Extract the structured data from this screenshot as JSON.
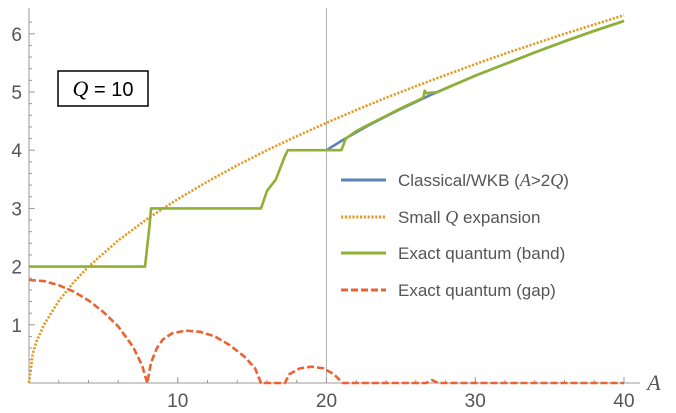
{
  "chart_data": {
    "type": "line",
    "xlabel": "A",
    "ylabel": "",
    "xlim": [
      0,
      40
    ],
    "ylim": [
      0,
      6.4
    ],
    "x_ticks": [
      10,
      20,
      30,
      40
    ],
    "y_ticks": [
      1,
      2,
      3,
      4,
      5,
      6
    ],
    "vertical_reference_line": 20,
    "grid": false,
    "legend_position": "right",
    "annotation": {
      "italic": "Q",
      "rest": " = 10"
    },
    "series": [
      {
        "name": "Classical/WKB (A>2Q)",
        "legend_parts": [
          [
            "Classical/WKB (",
            false
          ],
          [
            "A",
            true
          ],
          [
            ">2",
            false
          ],
          [
            "Q",
            true
          ],
          [
            ")",
            false
          ]
        ],
        "color": "#5e81b5",
        "style": "solid",
        "points": [
          [
            20,
            4.0
          ],
          [
            21,
            4.16
          ],
          [
            22,
            4.31
          ],
          [
            23,
            4.45
          ],
          [
            24,
            4.58
          ],
          [
            25,
            4.71
          ],
          [
            26,
            4.83
          ],
          [
            27,
            4.95
          ],
          [
            28,
            5.06
          ],
          [
            29,
            5.17
          ],
          [
            30,
            5.28
          ],
          [
            32,
            5.48
          ],
          [
            34,
            5.68
          ],
          [
            36,
            5.87
          ],
          [
            38,
            6.05
          ],
          [
            40,
            6.22
          ]
        ]
      },
      {
        "name": "Small Q expansion",
        "legend_parts": [
          [
            "Small ",
            false
          ],
          [
            "Q",
            true
          ],
          [
            " expansion",
            false
          ]
        ],
        "color": "#e19c24",
        "style": "dotted",
        "points": [
          [
            0,
            0.0
          ],
          [
            0.25,
            0.5
          ],
          [
            0.5,
            0.71
          ],
          [
            1,
            1.0
          ],
          [
            2,
            1.41
          ],
          [
            3,
            1.73
          ],
          [
            4,
            2.0
          ],
          [
            6,
            2.45
          ],
          [
            8,
            2.83
          ],
          [
            10,
            3.16
          ],
          [
            12,
            3.46
          ],
          [
            14,
            3.74
          ],
          [
            16,
            4.0
          ],
          [
            18,
            4.24
          ],
          [
            20,
            4.47
          ],
          [
            22,
            4.69
          ],
          [
            24,
            4.9
          ],
          [
            26,
            5.1
          ],
          [
            28,
            5.29
          ],
          [
            30,
            5.48
          ],
          [
            32,
            5.66
          ],
          [
            34,
            5.83
          ],
          [
            36,
            6.0
          ],
          [
            38,
            6.16
          ],
          [
            40,
            6.32
          ]
        ]
      },
      {
        "name": "Exact quantum (band)",
        "legend_parts": [
          [
            "Exact quantum (band)",
            false
          ]
        ],
        "color": "#8fb032",
        "style": "solid",
        "points": [
          [
            0,
            2.0
          ],
          [
            7.8,
            2.0
          ],
          [
            8.1,
            2.7
          ],
          [
            8.2,
            3.0
          ],
          [
            15.6,
            3.0
          ],
          [
            16.0,
            3.3
          ],
          [
            16.6,
            3.5
          ],
          [
            17.2,
            3.9
          ],
          [
            17.4,
            4.0
          ],
          [
            21.0,
            4.0
          ],
          [
            21.3,
            4.2
          ],
          [
            22,
            4.33
          ],
          [
            23,
            4.46
          ],
          [
            24,
            4.59
          ],
          [
            25,
            4.72
          ],
          [
            26,
            4.84
          ],
          [
            26.5,
            4.9
          ],
          [
            26.6,
            5.02
          ],
          [
            26.7,
            4.98
          ],
          [
            27.5,
            5.0
          ],
          [
            28,
            5.06
          ],
          [
            30,
            5.28
          ],
          [
            32,
            5.48
          ],
          [
            34,
            5.68
          ],
          [
            36,
            5.87
          ],
          [
            38,
            6.05
          ],
          [
            40,
            6.22
          ]
        ]
      },
      {
        "name": "Exact quantum (gap)",
        "legend_parts": [
          [
            "Exact quantum (gap)",
            false
          ]
        ],
        "color": "#eb6235",
        "style": "dashed",
        "points": [
          [
            0,
            1.77
          ],
          [
            1,
            1.75
          ],
          [
            2,
            1.68
          ],
          [
            3,
            1.57
          ],
          [
            4,
            1.42
          ],
          [
            5,
            1.22
          ],
          [
            6,
            0.97
          ],
          [
            7,
            0.62
          ],
          [
            7.6,
            0.3
          ],
          [
            7.95,
            0.0
          ],
          [
            8.2,
            0.35
          ],
          [
            8.6,
            0.6
          ],
          [
            9,
            0.75
          ],
          [
            9.6,
            0.85
          ],
          [
            10.5,
            0.9
          ],
          [
            11.5,
            0.88
          ],
          [
            12.5,
            0.8
          ],
          [
            13.5,
            0.65
          ],
          [
            14.5,
            0.45
          ],
          [
            15.2,
            0.25
          ],
          [
            15.6,
            0.0
          ],
          [
            17.2,
            0.0
          ],
          [
            17.5,
            0.15
          ],
          [
            18.2,
            0.25
          ],
          [
            19,
            0.28
          ],
          [
            19.8,
            0.25
          ],
          [
            20.5,
            0.15
          ],
          [
            21.1,
            0.0
          ],
          [
            26.7,
            0.0
          ],
          [
            27.1,
            0.05
          ],
          [
            27.5,
            0.0
          ],
          [
            40,
            0.0
          ]
        ]
      }
    ]
  }
}
